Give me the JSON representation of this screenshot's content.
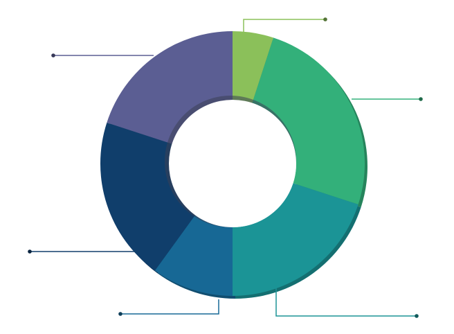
{
  "chart_data": {
    "type": "pie",
    "style": "donut",
    "title": "",
    "legend": "none",
    "slices": [
      {
        "value": 5,
        "color": "#8BC05A"
      },
      {
        "value": 25,
        "color": "#33B07A"
      },
      {
        "value": 20,
        "color": "#1B9496"
      },
      {
        "value": 10,
        "color": "#176895"
      },
      {
        "value": 20,
        "color": "#103E6B"
      },
      {
        "value": 20,
        "color": "#5B5E93"
      }
    ],
    "callout_color_edge": [
      "#8BC05A",
      "#33B07A",
      "#1B9496",
      "#176895",
      "#103E6B",
      "#5B5E93"
    ]
  }
}
